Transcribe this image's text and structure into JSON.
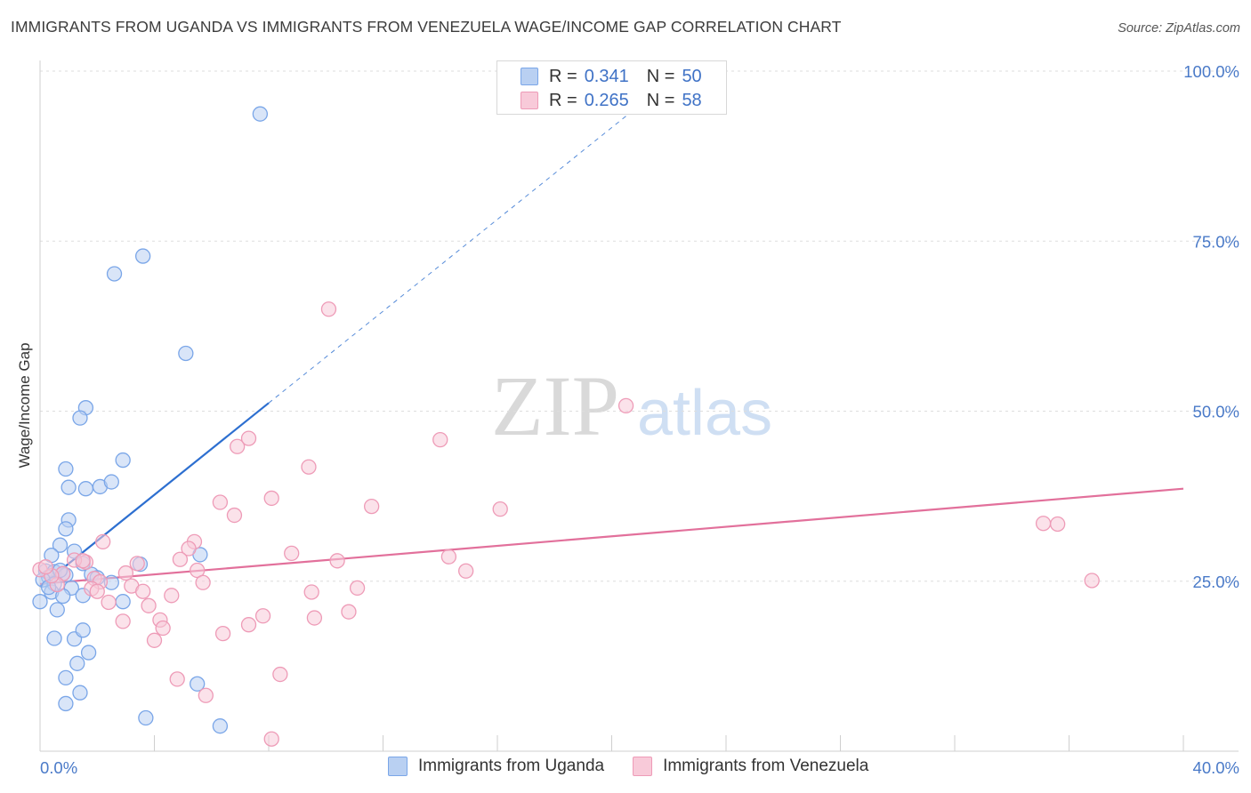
{
  "chart_data": {
    "type": "scatter",
    "title": "IMMIGRANTS FROM UGANDA VS IMMIGRANTS FROM VENEZUELA WAGE/INCOME GAP CORRELATION CHART",
    "source": "Source: ZipAtlas.com",
    "xlabel": "",
    "ylabel": "Wage/Income Gap",
    "xlim": [
      0,
      40
    ],
    "ylim": [
      0,
      100
    ],
    "x_tick_labels": [
      "0.0%",
      "40.0%"
    ],
    "y_tick_labels": [
      "25.0%",
      "50.0%",
      "75.0%",
      "100.0%"
    ],
    "y_ticks": [
      25,
      50,
      75,
      100
    ],
    "grid": true,
    "watermark": {
      "zip": "ZIP",
      "atlas": "atlas"
    },
    "legend": {
      "position": "top-center",
      "rows": [
        {
          "r_label": "R =",
          "r_value": "0.341",
          "n_label": "N =",
          "n_value": "50"
        },
        {
          "r_label": "R =",
          "r_value": "0.265",
          "n_label": "N =",
          "n_value": "58"
        }
      ]
    },
    "series": [
      {
        "name": "Immigrants from Uganda",
        "color": "#7aa6e8",
        "fill": "#b9d0f2",
        "line_color": "#2d6fd0",
        "trend": {
          "x0": 0,
          "y0": 24.2,
          "x1": 8.0,
          "y1": 51.2,
          "dashed_to_x": 21.0
        },
        "points": [
          [
            7.7,
            93.7
          ],
          [
            3.6,
            72.8
          ],
          [
            2.6,
            70.2
          ],
          [
            5.1,
            58.5
          ],
          [
            1.6,
            50.5
          ],
          [
            1.4,
            49.0
          ],
          [
            2.9,
            42.8
          ],
          [
            0.9,
            41.5
          ],
          [
            1.0,
            38.8
          ],
          [
            1.6,
            38.6
          ],
          [
            2.1,
            38.9
          ],
          [
            2.5,
            39.6
          ],
          [
            1.0,
            34.0
          ],
          [
            0.9,
            32.7
          ],
          [
            0.7,
            30.3
          ],
          [
            1.2,
            29.4
          ],
          [
            0.4,
            28.8
          ],
          [
            3.5,
            27.5
          ],
          [
            5.6,
            28.9
          ],
          [
            1.5,
            27.6
          ],
          [
            0.2,
            26.5
          ],
          [
            0.5,
            26.4
          ],
          [
            0.8,
            26.1
          ],
          [
            0.3,
            25.6
          ],
          [
            0.9,
            25.9
          ],
          [
            1.8,
            26.0
          ],
          [
            0.1,
            25.2
          ],
          [
            0.5,
            24.6
          ],
          [
            1.1,
            24.0
          ],
          [
            1.5,
            22.9
          ],
          [
            0.4,
            23.4
          ],
          [
            2.5,
            24.8
          ],
          [
            2.9,
            22.0
          ],
          [
            0.8,
            22.8
          ],
          [
            0.0,
            22.0
          ],
          [
            0.6,
            20.8
          ],
          [
            0.5,
            16.6
          ],
          [
            1.2,
            16.5
          ],
          [
            1.5,
            17.8
          ],
          [
            1.7,
            14.5
          ],
          [
            1.3,
            12.9
          ],
          [
            0.9,
            10.8
          ],
          [
            1.4,
            8.6
          ],
          [
            0.9,
            7.0
          ],
          [
            5.5,
            9.9
          ],
          [
            3.7,
            4.9
          ],
          [
            6.3,
            3.7
          ],
          [
            0.7,
            26.6
          ],
          [
            0.3,
            24.1
          ],
          [
            2.0,
            25.5
          ]
        ]
      },
      {
        "name": "Immigrants from Venezuela",
        "color": "#ee9bb7",
        "fill": "#f8cad9",
        "line_color": "#e2709b",
        "trend": {
          "x0": 0,
          "y0": 24.6,
          "x1": 40.0,
          "y1": 38.6
        },
        "points": [
          [
            10.1,
            65.0
          ],
          [
            20.5,
            50.8
          ],
          [
            14.0,
            45.8
          ],
          [
            6.9,
            44.8
          ],
          [
            7.3,
            46.0
          ],
          [
            9.4,
            41.8
          ],
          [
            6.3,
            36.6
          ],
          [
            8.1,
            37.2
          ],
          [
            11.6,
            36.0
          ],
          [
            16.1,
            35.6
          ],
          [
            6.8,
            34.7
          ],
          [
            35.1,
            33.5
          ],
          [
            35.6,
            33.4
          ],
          [
            2.2,
            30.8
          ],
          [
            5.4,
            30.8
          ],
          [
            5.2,
            29.8
          ],
          [
            8.8,
            29.1
          ],
          [
            14.3,
            28.6
          ],
          [
            4.9,
            28.2
          ],
          [
            10.4,
            28.0
          ],
          [
            3.4,
            27.6
          ],
          [
            1.6,
            27.8
          ],
          [
            1.2,
            28.1
          ],
          [
            5.5,
            26.6
          ],
          [
            14.9,
            26.5
          ],
          [
            0.8,
            26.1
          ],
          [
            1.9,
            25.4
          ],
          [
            2.1,
            24.9
          ],
          [
            5.7,
            24.8
          ],
          [
            3.2,
            24.3
          ],
          [
            0.6,
            24.5
          ],
          [
            11.1,
            24.0
          ],
          [
            1.8,
            23.9
          ],
          [
            9.5,
            23.4
          ],
          [
            3.6,
            23.5
          ],
          [
            4.6,
            22.9
          ],
          [
            2.4,
            21.9
          ],
          [
            3.8,
            21.4
          ],
          [
            36.8,
            25.1
          ],
          [
            10.8,
            20.5
          ],
          [
            7.8,
            19.9
          ],
          [
            4.2,
            19.3
          ],
          [
            9.6,
            19.6
          ],
          [
            2.9,
            19.1
          ],
          [
            7.3,
            18.6
          ],
          [
            4.3,
            18.1
          ],
          [
            6.4,
            17.3
          ],
          [
            4.0,
            16.3
          ],
          [
            8.4,
            11.3
          ],
          [
            4.8,
            10.6
          ],
          [
            5.8,
            8.2
          ],
          [
            8.1,
            1.8
          ],
          [
            0.0,
            26.7
          ],
          [
            0.4,
            25.8
          ],
          [
            1.5,
            28.0
          ],
          [
            3.0,
            26.2
          ],
          [
            2.0,
            23.5
          ],
          [
            0.2,
            27.1
          ]
        ]
      }
    ]
  }
}
